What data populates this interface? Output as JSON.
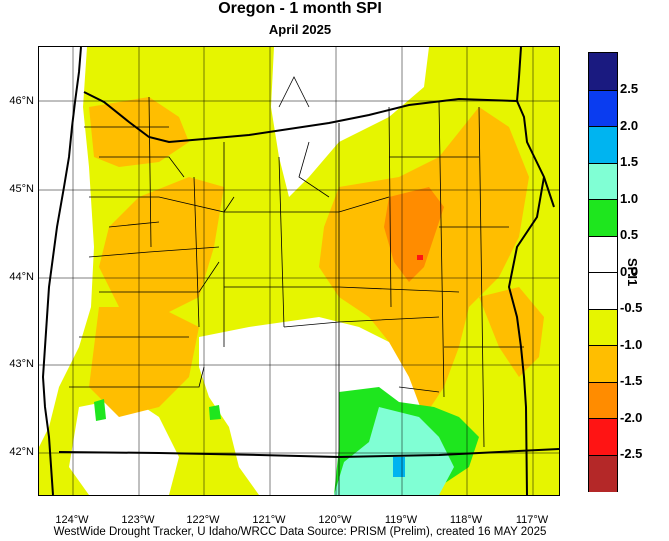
{
  "title": "Oregon - 1 month SPI",
  "subtitle": "April 2025",
  "footer": "WestWide Drought Tracker, U Idaho/WRCC Data Source: PRISM (Prelim), created 16 MAY 2025",
  "axes": {
    "latitude_ticks": [
      "46°N",
      "45°N",
      "44°N",
      "43°N",
      "42°N"
    ],
    "longitude_ticks": [
      "124°W",
      "123°W",
      "122°W",
      "121°W",
      "120°W",
      "119°W",
      "118°W",
      "117°W"
    ]
  },
  "colorbar": {
    "title": "SPI1",
    "labels": [
      "2.5",
      "2.0",
      "1.5",
      "1.0",
      "0.5",
      "0.0",
      "-0.5",
      "-1.0",
      "-1.5",
      "-2.0",
      "-2.5"
    ],
    "colors": [
      "#1a1a80",
      "#0a3cf0",
      "#00b4f0",
      "#80ffd4",
      "#1ee61e",
      "#ffffff",
      "#ffffff",
      "#e6f500",
      "#ffbe00",
      "#ff8c00",
      "#ff1414",
      "#b42828"
    ]
  }
}
